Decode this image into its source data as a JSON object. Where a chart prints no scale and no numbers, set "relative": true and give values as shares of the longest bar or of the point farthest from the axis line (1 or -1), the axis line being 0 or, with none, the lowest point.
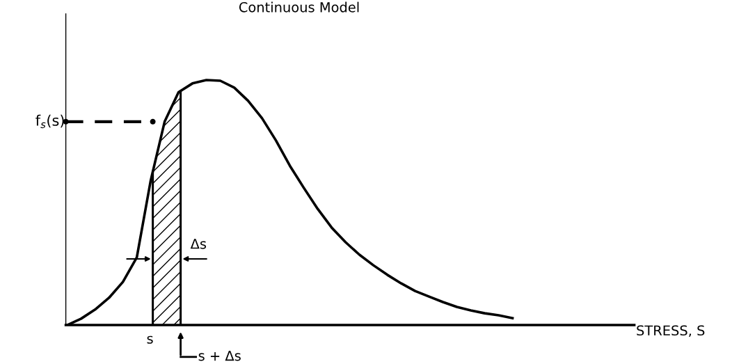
{
  "chart_data": {
    "type": "line",
    "title": "Continuous Model",
    "relative": true,
    "categories": [
      null,
      null,
      null,
      null,
      null,
      null,
      null,
      null,
      null,
      null,
      null,
      null,
      null,
      null,
      null,
      null,
      null,
      null,
      null,
      null,
      null,
      null,
      null,
      null,
      null,
      null,
      null,
      null,
      null,
      null,
      null,
      null,
      null
    ],
    "series": [
      {
        "color": "#000000",
        "values": [
          0,
          0.026,
          0.063,
          0.111,
          0.176,
          0.276,
          0.59,
          0.83,
          0.95,
          0.986,
          1,
          0.997,
          0.969,
          0.915,
          0.844,
          0.753,
          0.65,
          0.56,
          0.474,
          0.398,
          0.338,
          0.287,
          0.244,
          0.205,
          0.17,
          0.139,
          0.116,
          0.094,
          0.074,
          0.06,
          0.048,
          0.04,
          0.028
        ]
      }
    ],
    "ref_lines": [
      {
        "axis": "y",
        "value": 0.83,
        "label": "f$_{s}$(s)",
        "line_style": "dashed",
        "color": "#000000"
      }
    ],
    "annotations": [
      "Δs",
      "s",
      "s + Δs",
      "STRESS, S"
    ],
    "grid": false,
    "legend": false,
    "marker": "none",
    "line_style": "solid"
  }
}
